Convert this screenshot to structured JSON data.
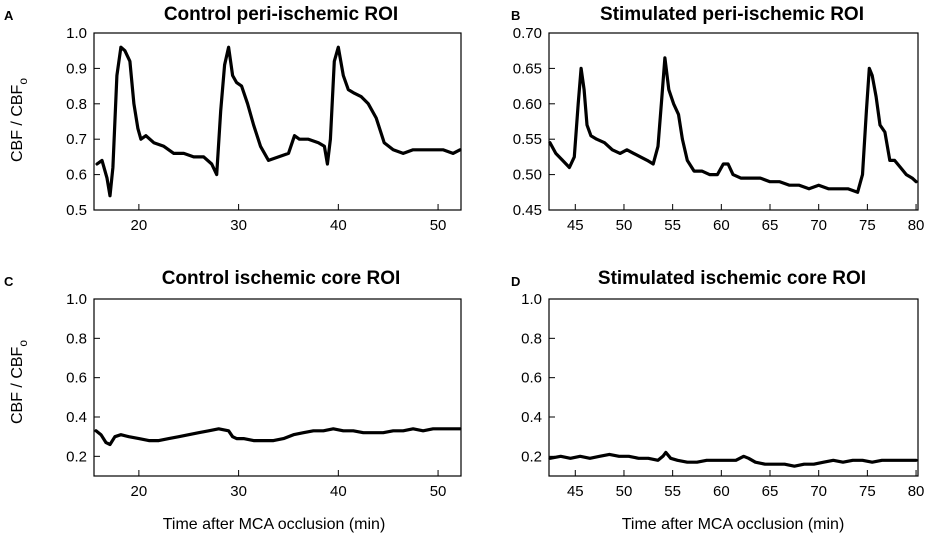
{
  "chart_data": [
    {
      "letter": "A",
      "type": "line",
      "title": "Control peri-ischemic ROI",
      "ylabel": "CBF / CBF",
      "ylabel_sub": "o",
      "xlabel": "",
      "xlim": [
        15.5,
        52.3
      ],
      "ylim": [
        0.5,
        1.0
      ],
      "xticks": [
        20,
        30,
        40,
        50
      ],
      "yticks": [
        0.5,
        0.6,
        0.7,
        0.8,
        0.9,
        1.0
      ],
      "ytick_labels": [
        "0.5",
        "0.6",
        "0.7",
        "0.8",
        "0.9",
        "1.0"
      ],
      "series": [
        {
          "name": "CBF",
          "x": [
            15.8,
            16.3,
            16.8,
            17.1,
            17.4,
            17.8,
            18.2,
            18.6,
            19.1,
            19.5,
            19.9,
            20.2,
            20.7,
            21.5,
            22.5,
            23.5,
            24.5,
            25.5,
            26.5,
            27.3,
            27.8,
            28.2,
            28.6,
            29.0,
            29.4,
            29.8,
            30.3,
            30.9,
            31.5,
            32.2,
            33.0,
            34.0,
            35.0,
            35.6,
            36.1,
            37.0,
            38.0,
            38.6,
            38.9,
            39.2,
            39.6,
            40.0,
            40.5,
            41.0,
            41.6,
            42.3,
            43.0,
            43.8,
            44.6,
            45.5,
            46.5,
            47.5,
            48.5,
            49.5,
            50.5,
            51.5,
            52.2
          ],
          "y": [
            0.63,
            0.64,
            0.59,
            0.54,
            0.62,
            0.88,
            0.96,
            0.95,
            0.92,
            0.8,
            0.73,
            0.7,
            0.71,
            0.69,
            0.68,
            0.66,
            0.66,
            0.65,
            0.65,
            0.63,
            0.6,
            0.78,
            0.91,
            0.96,
            0.88,
            0.86,
            0.85,
            0.8,
            0.74,
            0.68,
            0.64,
            0.65,
            0.66,
            0.71,
            0.7,
            0.7,
            0.69,
            0.68,
            0.63,
            0.7,
            0.92,
            0.96,
            0.88,
            0.84,
            0.83,
            0.82,
            0.8,
            0.76,
            0.69,
            0.67,
            0.66,
            0.67,
            0.67,
            0.67,
            0.67,
            0.66,
            0.67
          ]
        }
      ]
    },
    {
      "letter": "B",
      "type": "line",
      "title": "Stimulated peri-ischemic ROI",
      "ylabel": "",
      "xlabel": "",
      "xlim": [
        42.3,
        80.2
      ],
      "ylim": [
        0.45,
        0.7
      ],
      "xticks": [
        45,
        50,
        55,
        60,
        65,
        70,
        75,
        80
      ],
      "yticks": [
        0.45,
        0.5,
        0.55,
        0.6,
        0.65,
        0.7
      ],
      "ytick_labels": [
        "0.45",
        "0.50",
        "0.55",
        "0.60",
        "0.65",
        "0.70"
      ],
      "series": [
        {
          "name": "CBF",
          "x": [
            42.4,
            43.0,
            43.7,
            44.4,
            44.9,
            45.3,
            45.6,
            45.9,
            46.2,
            46.6,
            47.2,
            48.0,
            48.8,
            49.6,
            50.3,
            51.0,
            51.7,
            52.4,
            53.0,
            53.5,
            53.9,
            54.2,
            54.6,
            55.1,
            55.6,
            56.0,
            56.5,
            57.2,
            58.0,
            58.8,
            59.6,
            60.2,
            60.7,
            61.2,
            62.0,
            63.0,
            64.0,
            65.0,
            66.0,
            67.0,
            68.0,
            69.0,
            70.0,
            71.0,
            72.0,
            73.0,
            74.0,
            74.5,
            74.9,
            75.2,
            75.5,
            75.9,
            76.3,
            76.8,
            77.3,
            77.8,
            78.4,
            79.0,
            79.6,
            80.0
          ],
          "y": [
            0.545,
            0.53,
            0.52,
            0.51,
            0.525,
            0.6,
            0.65,
            0.62,
            0.57,
            0.555,
            0.55,
            0.545,
            0.535,
            0.53,
            0.535,
            0.53,
            0.525,
            0.52,
            0.515,
            0.54,
            0.61,
            0.665,
            0.62,
            0.6,
            0.585,
            0.55,
            0.52,
            0.505,
            0.505,
            0.5,
            0.5,
            0.515,
            0.515,
            0.5,
            0.495,
            0.495,
            0.495,
            0.49,
            0.49,
            0.485,
            0.485,
            0.48,
            0.485,
            0.48,
            0.48,
            0.48,
            0.475,
            0.5,
            0.59,
            0.65,
            0.64,
            0.61,
            0.57,
            0.56,
            0.52,
            0.52,
            0.51,
            0.5,
            0.495,
            0.49
          ]
        }
      ]
    },
    {
      "letter": "C",
      "type": "line",
      "title": "Control ischemic core ROI",
      "ylabel": "CBF / CBF",
      "ylabel_sub": "o",
      "xlabel": "Time after MCA occlusion (min)",
      "xlim": [
        15.5,
        52.3
      ],
      "ylim": [
        0.1,
        1.0
      ],
      "xticks": [
        20,
        30,
        40,
        50
      ],
      "yticks": [
        0.2,
        0.4,
        0.6,
        0.8,
        1.0
      ],
      "ytick_labels": [
        "0.2",
        "0.4",
        "0.6",
        "0.8",
        "1.0"
      ],
      "series": [
        {
          "name": "CBF",
          "x": [
            15.7,
            16.2,
            16.7,
            17.1,
            17.6,
            18.2,
            19.0,
            20.0,
            21.0,
            22.0,
            23.0,
            24.0,
            25.0,
            26.0,
            27.0,
            28.0,
            29.0,
            29.4,
            29.8,
            30.5,
            31.5,
            32.5,
            33.5,
            34.5,
            35.5,
            36.5,
            37.5,
            38.5,
            39.5,
            40.5,
            41.5,
            42.5,
            43.5,
            44.5,
            45.5,
            46.5,
            47.5,
            48.5,
            49.5,
            50.5,
            51.5,
            52.2
          ],
          "y": [
            0.33,
            0.31,
            0.27,
            0.26,
            0.3,
            0.31,
            0.3,
            0.29,
            0.28,
            0.28,
            0.29,
            0.3,
            0.31,
            0.32,
            0.33,
            0.34,
            0.33,
            0.3,
            0.29,
            0.29,
            0.28,
            0.28,
            0.28,
            0.29,
            0.31,
            0.32,
            0.33,
            0.33,
            0.34,
            0.33,
            0.33,
            0.32,
            0.32,
            0.32,
            0.33,
            0.33,
            0.34,
            0.33,
            0.34,
            0.34,
            0.34,
            0.34
          ]
        }
      ]
    },
    {
      "letter": "D",
      "type": "line",
      "title": "Stimulated ischemic core ROI",
      "ylabel": "",
      "xlabel": "Time after MCA occlusion (min)",
      "xlim": [
        42.3,
        80.2
      ],
      "ylim": [
        0.1,
        1.0
      ],
      "xticks": [
        45,
        50,
        55,
        60,
        65,
        70,
        75,
        80
      ],
      "yticks": [
        0.2,
        0.4,
        0.6,
        0.8,
        1.0
      ],
      "ytick_labels": [
        "0.2",
        "0.4",
        "0.6",
        "0.8",
        "1.0"
      ],
      "series": [
        {
          "name": "CBF",
          "x": [
            42.4,
            43.5,
            44.5,
            45.5,
            46.5,
            47.5,
            48.5,
            49.5,
            50.5,
            51.5,
            52.5,
            53.5,
            54.0,
            54.3,
            54.8,
            55.5,
            56.5,
            57.5,
            58.5,
            59.5,
            60.5,
            61.5,
            62.3,
            62.8,
            63.5,
            64.5,
            65.5,
            66.5,
            67.5,
            68.5,
            69.5,
            70.5,
            71.5,
            72.5,
            73.5,
            74.5,
            75.5,
            76.5,
            77.5,
            78.5,
            79.5,
            80.0
          ],
          "y": [
            0.19,
            0.2,
            0.19,
            0.2,
            0.19,
            0.2,
            0.21,
            0.2,
            0.2,
            0.19,
            0.19,
            0.18,
            0.2,
            0.22,
            0.19,
            0.18,
            0.17,
            0.17,
            0.18,
            0.18,
            0.18,
            0.18,
            0.2,
            0.19,
            0.17,
            0.16,
            0.16,
            0.16,
            0.15,
            0.16,
            0.16,
            0.17,
            0.18,
            0.17,
            0.18,
            0.18,
            0.17,
            0.18,
            0.18,
            0.18,
            0.18,
            0.18
          ]
        }
      ]
    }
  ]
}
